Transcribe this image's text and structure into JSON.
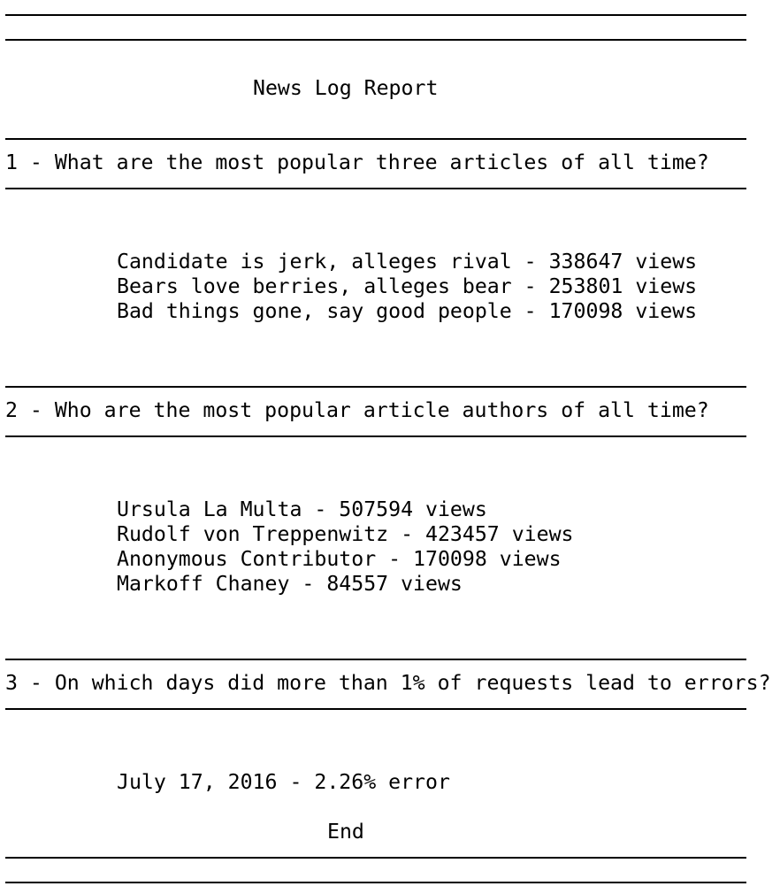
{
  "report": {
    "title": "News Log Report",
    "end_label": "End"
  },
  "sections": [
    {
      "question": "1 - What are the most popular three articles of all time?",
      "results": [
        "Candidate is jerk, alleges rival - 338647 views",
        "Bears love berries, alleges bear - 253801 views",
        "Bad things gone, say good people - 170098 views"
      ]
    },
    {
      "question": "2 - Who are the most popular article authors of all time?",
      "results": [
        "Ursula La Multa - 507594 views",
        "Rudolf von Treppenwitz - 423457 views",
        "Anonymous Contributor - 170098 views",
        "Markoff Chaney - 84557 views"
      ]
    },
    {
      "question": "3 - On which days did more than 1% of requests lead to errors?",
      "results": [
        "July 17, 2016 - 2.26% error"
      ]
    }
  ]
}
